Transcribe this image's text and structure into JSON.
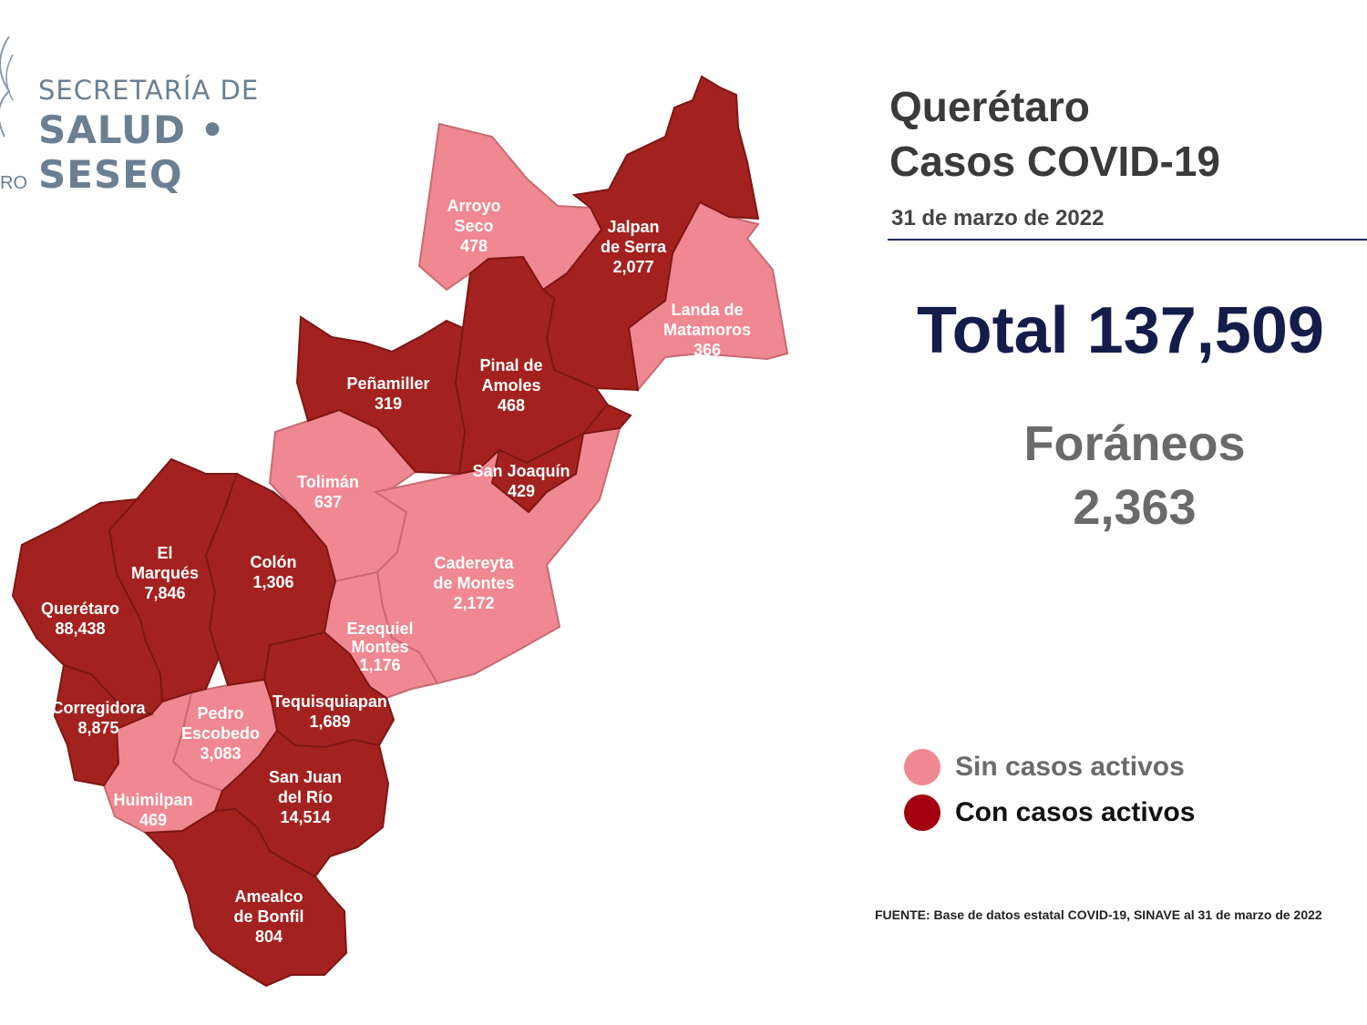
{
  "header": {
    "org_line1": "SECRETARÍA DE",
    "org_line2": "SALUD • SESEQ",
    "logo_fragment": "RO"
  },
  "title": {
    "line1": "Querétaro",
    "line2": "Casos COVID-19",
    "date": "31 de marzo de 2022"
  },
  "total": {
    "label": "Total",
    "value": "137,509"
  },
  "foraneos": {
    "label": "Foráneos",
    "value": "2,363"
  },
  "legend": {
    "without": {
      "label": "Sin casos activos",
      "color": "#f08891"
    },
    "with": {
      "label": "Con casos activos",
      "color": "#a3000f"
    }
  },
  "source": "FUENTE: Base de datos estatal COVID-19, SINAVE al 31 de marzo de 2022",
  "municipalities": [
    {
      "name": [
        "Arroyo",
        "Seco"
      ],
      "cases": "478",
      "status": "sin"
    },
    {
      "name": [
        "Jalpan",
        "de Serra"
      ],
      "cases": "2,077",
      "status": "con"
    },
    {
      "name": [
        "Landa de",
        "Matamoros"
      ],
      "cases": "366",
      "status": "sin"
    },
    {
      "name": [
        "Pinal de",
        "Amoles"
      ],
      "cases": "468",
      "status": "con"
    },
    {
      "name": [
        "Peñamiller"
      ],
      "cases": "319",
      "status": "con"
    },
    {
      "name": [
        "San Joaquín"
      ],
      "cases": "429",
      "status": "con"
    },
    {
      "name": [
        "Tolimán"
      ],
      "cases": "637",
      "status": "sin"
    },
    {
      "name": [
        "Cadereyta",
        "de Montes"
      ],
      "cases": "2,172",
      "status": "sin"
    },
    {
      "name": [
        "El",
        "Marqués"
      ],
      "cases": "7,846",
      "status": "con"
    },
    {
      "name": [
        "Colón"
      ],
      "cases": "1,306",
      "status": "con"
    },
    {
      "name": [
        "Querétaro"
      ],
      "cases": "88,438",
      "status": "con"
    },
    {
      "name": [
        "Ezequiel",
        "Montes"
      ],
      "cases": "1,176",
      "status": "sin"
    },
    {
      "name": [
        "Corregidora"
      ],
      "cases": "8,875",
      "status": "con"
    },
    {
      "name": [
        "Pedro",
        "Escobedo"
      ],
      "cases": "3,083",
      "status": "sin"
    },
    {
      "name": [
        "Tequisquiapan"
      ],
      "cases": "1,689",
      "status": "con"
    },
    {
      "name": [
        "San Juan",
        "del Río"
      ],
      "cases": "14,514",
      "status": "con"
    },
    {
      "name": [
        "Huimilpan"
      ],
      "cases": "469",
      "status": "sin"
    },
    {
      "name": [
        "Amealco",
        "de Bonfil"
      ],
      "cases": "804",
      "status": "con"
    }
  ]
}
